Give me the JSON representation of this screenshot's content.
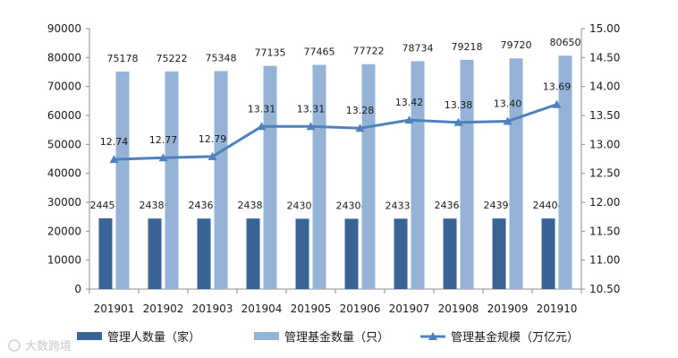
{
  "chart_data": {
    "type": "bar",
    "categories": [
      "201901",
      "201902",
      "201903",
      "201904",
      "201905",
      "201906",
      "201907",
      "201908",
      "201909",
      "201910"
    ],
    "series": [
      {
        "name": "管理人数量（家）",
        "kind": "bar",
        "axis": "left",
        "color": "#3a6496",
        "values": [
          24458,
          24380,
          24361,
          24388,
          24307,
          24304,
          24332,
          24368,
          24399,
          24404
        ]
      },
      {
        "name": "管理基金数量（只）",
        "kind": "bar",
        "axis": "left",
        "color": "#95b3d7",
        "values": [
          75178,
          75222,
          75348,
          77135,
          77465,
          77722,
          78734,
          79218,
          79720,
          80650
        ]
      },
      {
        "name": "管理基金规模（万亿元）",
        "kind": "line",
        "marker": "triangle",
        "axis": "right",
        "color": "#4f81bd",
        "values": [
          12.74,
          12.77,
          12.79,
          13.31,
          13.31,
          13.28,
          13.42,
          13.38,
          13.4,
          13.69
        ],
        "labels": [
          "12.74",
          "12.77",
          "12.79",
          "13.31",
          "13.31",
          "13.28",
          "13.42",
          "13.38",
          "13.40",
          "13.69"
        ]
      }
    ],
    "y_left": {
      "ylim": [
        0,
        90000
      ],
      "ticks": [
        "0",
        "10000",
        "20000",
        "30000",
        "40000",
        "50000",
        "60000",
        "70000",
        "80000",
        "90000"
      ]
    },
    "y_right": {
      "ylim": [
        10.5,
        15.0
      ],
      "ticks": [
        "10.50",
        "11.00",
        "11.50",
        "12.00",
        "12.50",
        "13.00",
        "13.50",
        "14.00",
        "14.50",
        "15.00"
      ]
    },
    "grid": false,
    "legend": "bottom",
    "title": "",
    "xlabel": "",
    "ylabel": ""
  },
  "watermark": "大数跨境"
}
